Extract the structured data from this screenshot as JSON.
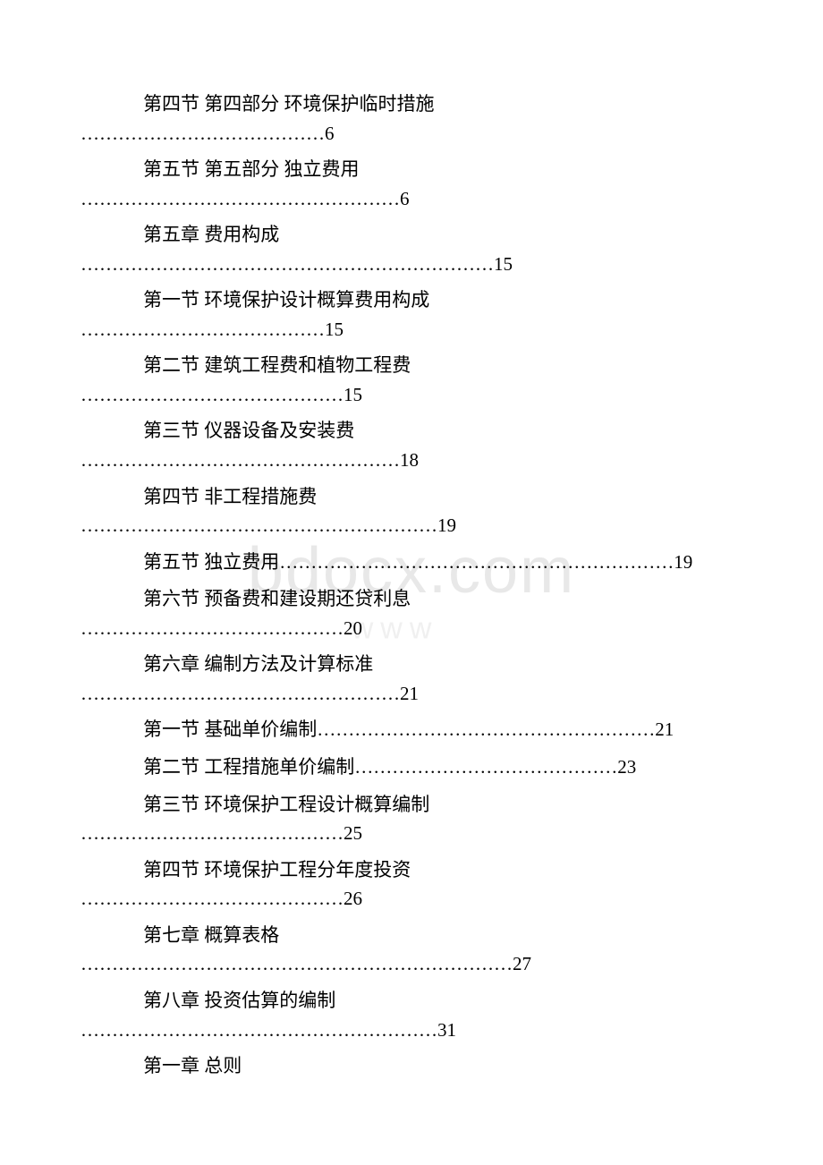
{
  "watermark_main": "bdocx.com",
  "watermark_sub": "www",
  "entries": [
    {
      "title": "第四节 第四部分 环境保护临时措施",
      "dots": "…………………………………",
      "page": "6",
      "indent": 2,
      "twoline": true
    },
    {
      "title": "第五节 第五部分 独立费用",
      "dots": "……………………………………………",
      "page": "6",
      "indent": 2,
      "twoline": true
    },
    {
      "title": "第五章 费用构成",
      "dots": "…………………………………………………………",
      "page": "15",
      "indent": 1,
      "twoline": true
    },
    {
      "title": "第一节 环境保护设计概算费用构成",
      "dots": "…………………………………",
      "page": "15",
      "indent": 2,
      "twoline": true
    },
    {
      "title": "第二节 建筑工程费和植物工程费",
      "dots": "……………………………………",
      "page": "15",
      "indent": 2,
      "twoline": true
    },
    {
      "title": "第三节 仪器设备及安装费",
      "dots": "……………………………………………",
      "page": "18",
      "indent": 2,
      "twoline": true
    },
    {
      "title": "第四节 非工程措施费",
      "dots": "…………………………………………………",
      "page": "19",
      "indent": 2,
      "twoline": true
    },
    {
      "title": "第五节 独立费用",
      "dots": "………………………………………………………",
      "page": "19",
      "indent": 2,
      "twoline": false
    },
    {
      "title": "第六节 预备费和建设期还贷利息",
      "dots": "……………………………………",
      "page": "20",
      "indent": 2,
      "twoline": true
    },
    {
      "title": "第六章 编制方法及计算标准",
      "dots": "……………………………………………",
      "page": "21",
      "indent": 1,
      "twoline": true
    },
    {
      "title": "第一节 基础单价编制",
      "dots": "………………………………………………",
      "page": "21",
      "indent": 2,
      "twoline": false
    },
    {
      "title": "第二节 工程措施单价编制",
      "dots": "……………………………………",
      "page": "23",
      "indent": 2,
      "twoline": false
    },
    {
      "title": "第三节 环境保护工程设计概算编制",
      "dots": "……………………………………",
      "page": "25",
      "indent": 2,
      "twoline": true
    },
    {
      "title": "第四节 环境保护工程分年度投资",
      "dots": "……………………………………",
      "page": "26",
      "indent": 2,
      "twoline": true
    },
    {
      "title": "第七章 概算表格",
      "dots": "……………………………………………………………",
      "page": "27",
      "indent": 1,
      "twoline": true
    },
    {
      "title": "第八章 投资估算的编制",
      "dots": "…………………………………………………",
      "page": "31",
      "indent": 1,
      "twoline": true
    }
  ],
  "final_heading": "第一章 总则",
  "colors": {
    "text": "#000000",
    "background": "#ffffff",
    "watermark": "#e8e8e8"
  },
  "font_size_pt": 16,
  "font_family": "SimSun"
}
